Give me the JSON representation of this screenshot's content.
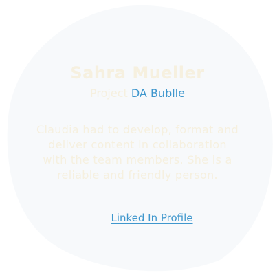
{
  "card": {
    "name": "Sahra Mueller",
    "project_prefix": "Project",
    "project_name": "DA Bublle",
    "bio": "Claudia had to develop, format and deliver content in collaboration with the team members. She is a reliable and friendly person.",
    "profile_link": "Linked In Profile"
  },
  "colors": {
    "blob": "#f7f9fb",
    "faded_text": "#f6f0df",
    "link": "#3f97cd",
    "background": "#ffffff"
  }
}
